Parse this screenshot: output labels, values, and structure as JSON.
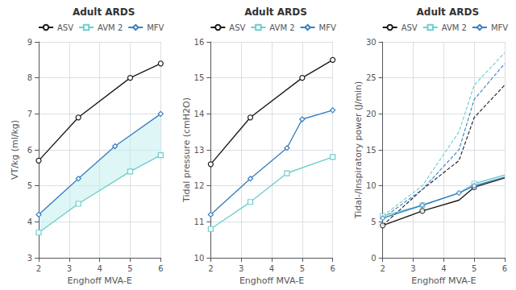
{
  "chart_data": [
    {
      "type": "line",
      "title": "Adult ARDS",
      "xlabel": "Enghoff MVA-E",
      "ylabel": "VT/kg (ml/kg)",
      "xlim": [
        2,
        6
      ],
      "xticks": [
        2,
        3,
        4,
        5,
        6
      ],
      "ylim": [
        3,
        9
      ],
      "yticks": [
        3,
        4,
        5,
        6,
        7,
        8,
        9
      ],
      "grid": true,
      "legend": "top",
      "shade": {
        "color": "#c5eeee",
        "between": [
          "AVM 2",
          "MFV"
        ]
      },
      "series": [
        {
          "name": "ASV",
          "color": "#1a1a1a",
          "marker": "circle",
          "x": [
            2,
            3.3,
            5,
            6
          ],
          "values": [
            5.7,
            6.9,
            8.0,
            8.4
          ]
        },
        {
          "name": "AVM 2",
          "color": "#6ecece",
          "marker": "square",
          "x": [
            2,
            3.3,
            5,
            6
          ],
          "values": [
            3.7,
            4.5,
            5.4,
            5.85
          ]
        },
        {
          "name": "MFV",
          "color": "#3a7fbf",
          "marker": "diamond",
          "x": [
            2,
            3.3,
            4.5,
            6
          ],
          "values": [
            4.2,
            5.2,
            6.1,
            7.0
          ]
        }
      ]
    },
    {
      "type": "line",
      "title": "Adult ARDS",
      "xlabel": "Enghoff MVA-E",
      "ylabel": "Tidal pressure (cmH2O)",
      "xlim": [
        2,
        6
      ],
      "xticks": [
        2,
        3,
        4,
        5,
        6
      ],
      "ylim": [
        10,
        16
      ],
      "yticks": [
        10,
        11,
        12,
        13,
        14,
        15,
        16
      ],
      "grid": true,
      "legend": "top",
      "series": [
        {
          "name": "ASV",
          "color": "#1a1a1a",
          "marker": "circle",
          "x": [
            2,
            3.3,
            5,
            6
          ],
          "values": [
            12.6,
            13.9,
            15.0,
            15.5
          ]
        },
        {
          "name": "AVM 2",
          "color": "#6ecece",
          "marker": "square",
          "x": [
            2,
            3.3,
            4.5,
            6
          ],
          "values": [
            10.8,
            11.55,
            12.35,
            12.8
          ]
        },
        {
          "name": "MFV",
          "color": "#3a7fbf",
          "marker": "diamond",
          "x": [
            2,
            3.3,
            4.5,
            5,
            6
          ],
          "values": [
            11.2,
            12.2,
            13.05,
            13.85,
            14.1
          ]
        }
      ]
    },
    {
      "type": "line",
      "title": "Adult ARDS",
      "xlabel": "Enghoff MVA-E",
      "ylabel": "Tidal-/Inspiratory power (J/min)",
      "xlim": [
        2,
        6
      ],
      "xticks": [
        2,
        3,
        4,
        5,
        6
      ],
      "ylim": [
        0,
        30
      ],
      "yticks": [
        0,
        5,
        10,
        15,
        20,
        25,
        30
      ],
      "grid": true,
      "legend": "top",
      "series": [
        {
          "name": "ASV",
          "color": "#1a1a1a",
          "marker": "circle",
          "line_style": "solid",
          "x": [
            2,
            3.3,
            4.5,
            5,
            6
          ],
          "values": [
            4.5,
            6.5,
            8.0,
            9.8,
            11.1
          ],
          "markers": {
            "x": [
              2,
              3.3,
              5
            ],
            "values": [
              4.5,
              6.5,
              9.8
            ]
          }
        },
        {
          "name": "AVM 2",
          "color": "#6ecece",
          "marker": "square",
          "line_style": "solid",
          "x": [
            2,
            3.3,
            4.5,
            5,
            6
          ],
          "values": [
            5.8,
            7.3,
            9.0,
            10.3,
            11.5
          ],
          "markers": {
            "x": [
              2,
              3.3,
              5
            ],
            "values": [
              5.8,
              7.3,
              10.3
            ]
          }
        },
        {
          "name": "MFV",
          "color": "#3a7fbf",
          "marker": "diamond",
          "line_style": "solid",
          "x": [
            2,
            3.3,
            4.5,
            5,
            6
          ],
          "values": [
            5.5,
            7.3,
            9.0,
            10.0,
            11.2
          ],
          "markers": {
            "x": [
              2,
              3.3,
              4.5,
              5
            ],
            "values": [
              5.5,
              7.3,
              9.0,
              10.0
            ]
          }
        },
        {
          "name": "ASV",
          "color": "#1a1a1a",
          "line_style": "dashed",
          "x": [
            2,
            3.3,
            4.5,
            5,
            6
          ],
          "values": [
            4.5,
            9.5,
            13.5,
            19.5,
            24.0
          ]
        },
        {
          "name": "AVM 2",
          "color": "#6ecece",
          "line_style": "dashed",
          "x": [
            2,
            3.3,
            4.5,
            5,
            6
          ],
          "values": [
            5.8,
            10.0,
            17.5,
            24.0,
            28.5
          ]
        },
        {
          "name": "MFV",
          "color": "#3a7fbf",
          "line_style": "dashed",
          "x": [
            2,
            3.3,
            4.5,
            5,
            6
          ],
          "values": [
            5.5,
            9.5,
            15.0,
            22.0,
            27.0
          ]
        }
      ]
    }
  ]
}
